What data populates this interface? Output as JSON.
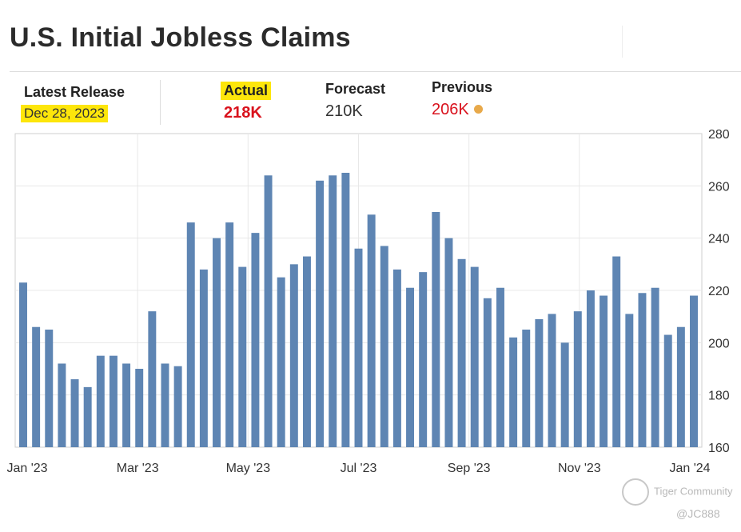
{
  "title": "U.S. Initial Jobless Claims",
  "stats": {
    "latest_release_label": "Latest Release",
    "latest_release_date": "Dec 28, 2023",
    "actual_label": "Actual",
    "actual_value": "218K",
    "forecast_label": "Forecast",
    "forecast_value": "210K",
    "previous_label": "Previous",
    "previous_value": "206K"
  },
  "colors": {
    "bar": "#5e85b3",
    "highlight": "#fde60b",
    "accent_red": "#d9121d",
    "dot": "#e8a94a"
  },
  "watermark": {
    "brand": "Tiger Community",
    "handle": "@JC888"
  },
  "chart_data": {
    "type": "bar",
    "title": "U.S. Initial Jobless Claims",
    "xlabel": "",
    "ylabel": "",
    "ylim": [
      160,
      280
    ],
    "yticks": [
      160,
      180,
      200,
      220,
      240,
      260,
      280
    ],
    "y_axis_side": "right",
    "grid": true,
    "x_tick_labels": [
      "Jan '23",
      "Mar '23",
      "May '23",
      "Jul '23",
      "Sep '23",
      "Nov '23",
      "Jan '24"
    ],
    "values": [
      223,
      206,
      205,
      192,
      186,
      183,
      195,
      195,
      192,
      190,
      212,
      192,
      191,
      246,
      228,
      240,
      246,
      229,
      242,
      264,
      225,
      230,
      233,
      262,
      264,
      265,
      236,
      249,
      237,
      228,
      221,
      227,
      250,
      240,
      232,
      229,
      217,
      221,
      202,
      205,
      209,
      211,
      200,
      212,
      220,
      218,
      233,
      211,
      219,
      221,
      203,
      206,
      218
    ]
  }
}
